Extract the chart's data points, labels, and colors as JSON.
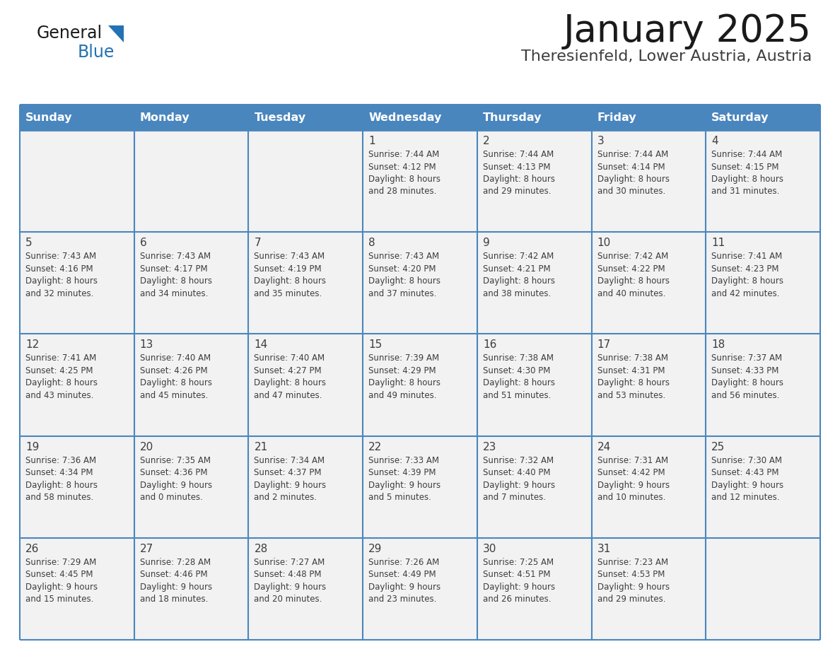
{
  "title": "January 2025",
  "subtitle": "Theresienfeld, Lower Austria, Austria",
  "days_of_week": [
    "Sunday",
    "Monday",
    "Tuesday",
    "Wednesday",
    "Thursday",
    "Friday",
    "Saturday"
  ],
  "header_bg": "#4A86BE",
  "header_text": "#FFFFFF",
  "cell_bg_light": "#F2F2F2",
  "cell_bg_white": "#FFFFFF",
  "border_color": "#4A86BE",
  "text_color": "#3D3D3D",
  "title_color": "#1a1a1a",
  "subtitle_color": "#3D3D3D",
  "generalblue_black": "#1a1a1a",
  "generalblue_blue": "#2472B3",
  "calendar_data": [
    [
      {
        "day": null,
        "info": null
      },
      {
        "day": null,
        "info": null
      },
      {
        "day": null,
        "info": null
      },
      {
        "day": 1,
        "info": "Sunrise: 7:44 AM\nSunset: 4:12 PM\nDaylight: 8 hours\nand 28 minutes."
      },
      {
        "day": 2,
        "info": "Sunrise: 7:44 AM\nSunset: 4:13 PM\nDaylight: 8 hours\nand 29 minutes."
      },
      {
        "day": 3,
        "info": "Sunrise: 7:44 AM\nSunset: 4:14 PM\nDaylight: 8 hours\nand 30 minutes."
      },
      {
        "day": 4,
        "info": "Sunrise: 7:44 AM\nSunset: 4:15 PM\nDaylight: 8 hours\nand 31 minutes."
      }
    ],
    [
      {
        "day": 5,
        "info": "Sunrise: 7:43 AM\nSunset: 4:16 PM\nDaylight: 8 hours\nand 32 minutes."
      },
      {
        "day": 6,
        "info": "Sunrise: 7:43 AM\nSunset: 4:17 PM\nDaylight: 8 hours\nand 34 minutes."
      },
      {
        "day": 7,
        "info": "Sunrise: 7:43 AM\nSunset: 4:19 PM\nDaylight: 8 hours\nand 35 minutes."
      },
      {
        "day": 8,
        "info": "Sunrise: 7:43 AM\nSunset: 4:20 PM\nDaylight: 8 hours\nand 37 minutes."
      },
      {
        "day": 9,
        "info": "Sunrise: 7:42 AM\nSunset: 4:21 PM\nDaylight: 8 hours\nand 38 minutes."
      },
      {
        "day": 10,
        "info": "Sunrise: 7:42 AM\nSunset: 4:22 PM\nDaylight: 8 hours\nand 40 minutes."
      },
      {
        "day": 11,
        "info": "Sunrise: 7:41 AM\nSunset: 4:23 PM\nDaylight: 8 hours\nand 42 minutes."
      }
    ],
    [
      {
        "day": 12,
        "info": "Sunrise: 7:41 AM\nSunset: 4:25 PM\nDaylight: 8 hours\nand 43 minutes."
      },
      {
        "day": 13,
        "info": "Sunrise: 7:40 AM\nSunset: 4:26 PM\nDaylight: 8 hours\nand 45 minutes."
      },
      {
        "day": 14,
        "info": "Sunrise: 7:40 AM\nSunset: 4:27 PM\nDaylight: 8 hours\nand 47 minutes."
      },
      {
        "day": 15,
        "info": "Sunrise: 7:39 AM\nSunset: 4:29 PM\nDaylight: 8 hours\nand 49 minutes."
      },
      {
        "day": 16,
        "info": "Sunrise: 7:38 AM\nSunset: 4:30 PM\nDaylight: 8 hours\nand 51 minutes."
      },
      {
        "day": 17,
        "info": "Sunrise: 7:38 AM\nSunset: 4:31 PM\nDaylight: 8 hours\nand 53 minutes."
      },
      {
        "day": 18,
        "info": "Sunrise: 7:37 AM\nSunset: 4:33 PM\nDaylight: 8 hours\nand 56 minutes."
      }
    ],
    [
      {
        "day": 19,
        "info": "Sunrise: 7:36 AM\nSunset: 4:34 PM\nDaylight: 8 hours\nand 58 minutes."
      },
      {
        "day": 20,
        "info": "Sunrise: 7:35 AM\nSunset: 4:36 PM\nDaylight: 9 hours\nand 0 minutes."
      },
      {
        "day": 21,
        "info": "Sunrise: 7:34 AM\nSunset: 4:37 PM\nDaylight: 9 hours\nand 2 minutes."
      },
      {
        "day": 22,
        "info": "Sunrise: 7:33 AM\nSunset: 4:39 PM\nDaylight: 9 hours\nand 5 minutes."
      },
      {
        "day": 23,
        "info": "Sunrise: 7:32 AM\nSunset: 4:40 PM\nDaylight: 9 hours\nand 7 minutes."
      },
      {
        "day": 24,
        "info": "Sunrise: 7:31 AM\nSunset: 4:42 PM\nDaylight: 9 hours\nand 10 minutes."
      },
      {
        "day": 25,
        "info": "Sunrise: 7:30 AM\nSunset: 4:43 PM\nDaylight: 9 hours\nand 12 minutes."
      }
    ],
    [
      {
        "day": 26,
        "info": "Sunrise: 7:29 AM\nSunset: 4:45 PM\nDaylight: 9 hours\nand 15 minutes."
      },
      {
        "day": 27,
        "info": "Sunrise: 7:28 AM\nSunset: 4:46 PM\nDaylight: 9 hours\nand 18 minutes."
      },
      {
        "day": 28,
        "info": "Sunrise: 7:27 AM\nSunset: 4:48 PM\nDaylight: 9 hours\nand 20 minutes."
      },
      {
        "day": 29,
        "info": "Sunrise: 7:26 AM\nSunset: 4:49 PM\nDaylight: 9 hours\nand 23 minutes."
      },
      {
        "day": 30,
        "info": "Sunrise: 7:25 AM\nSunset: 4:51 PM\nDaylight: 9 hours\nand 26 minutes."
      },
      {
        "day": 31,
        "info": "Sunrise: 7:23 AM\nSunset: 4:53 PM\nDaylight: 9 hours\nand 29 minutes."
      },
      {
        "day": null,
        "info": null
      }
    ]
  ]
}
